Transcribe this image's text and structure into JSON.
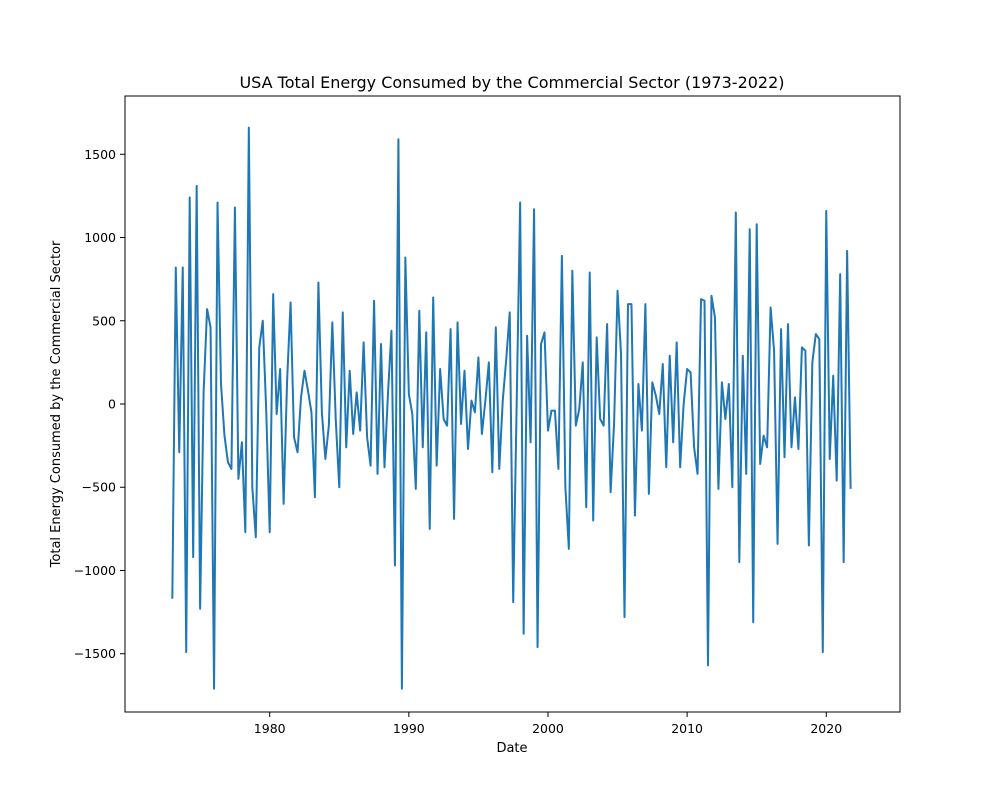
{
  "chart_data": {
    "type": "line",
    "title": "USA Total Energy Consumed by the Commercial Sector (1973-2022)",
    "xlabel": "Date",
    "ylabel": "Total Energy Consumed by the Commercial Sector",
    "xlim": [
      1969.6,
      2025.3
    ],
    "ylim": [
      -1850,
      1850
    ],
    "x_ticks": [
      1980,
      1990,
      2000,
      2010,
      2020
    ],
    "y_ticks": [
      -1500,
      -1000,
      -500,
      0,
      500,
      1000,
      1500
    ],
    "grid": false,
    "legend": "none",
    "line_color": "#1f77b4",
    "series": [
      {
        "x": [
          1973.0,
          1973.25,
          1973.5,
          1973.75,
          1974.0,
          1974.25,
          1974.5,
          1974.75,
          1975.0,
          1975.25,
          1975.5,
          1975.75,
          1976.0,
          1976.25,
          1976.5,
          1976.75,
          1977.0,
          1977.25,
          1977.5,
          1977.75,
          1978.0,
          1978.25,
          1978.5,
          1978.75,
          1979.0,
          1979.25,
          1979.5,
          1979.75,
          1980.0,
          1980.25,
          1980.5,
          1980.75,
          1981.0,
          1981.25,
          1981.5,
          1981.75,
          1982.0,
          1982.25,
          1982.5,
          1982.75,
          1983.0,
          1983.25,
          1983.5,
          1983.75,
          1984.0,
          1984.25,
          1984.5,
          1984.75,
          1985.0,
          1985.25,
          1985.5,
          1985.75,
          1986.0,
          1986.25,
          1986.5,
          1986.75,
          1987.0,
          1987.25,
          1987.5,
          1987.75,
          1988.0,
          1988.25,
          1988.5,
          1988.75,
          1989.0,
          1989.25,
          1989.5,
          1989.75,
          1990.0,
          1990.25,
          1990.5,
          1990.75,
          1991.0,
          1991.25,
          1991.5,
          1991.75,
          1992.0,
          1992.25,
          1992.5,
          1992.75,
          1993.0,
          1993.25,
          1993.5,
          1993.75,
          1994.0,
          1994.25,
          1994.5,
          1994.75,
          1995.0,
          1995.25,
          1995.5,
          1995.75,
          1996.0,
          1996.25,
          1996.5,
          1996.75,
          1997.0,
          1997.25,
          1997.5,
          1997.75,
          1998.0,
          1998.25,
          1998.5,
          1998.75,
          1999.0,
          1999.25,
          1999.5,
          1999.75,
          2000.0,
          2000.25,
          2000.5,
          2000.75,
          2001.0,
          2001.25,
          2001.5,
          2001.75,
          2002.0,
          2002.25,
          2002.5,
          2002.75,
          2003.0,
          2003.25,
          2003.5,
          2003.75,
          2004.0,
          2004.25,
          2004.5,
          2004.75,
          2005.0,
          2005.25,
          2005.5,
          2005.75,
          2006.0,
          2006.25,
          2006.5,
          2006.75,
          2007.0,
          2007.25,
          2007.5,
          2007.75,
          2008.0,
          2008.25,
          2008.5,
          2008.75,
          2009.0,
          2009.25,
          2009.5,
          2009.75,
          2010.0,
          2010.25,
          2010.5,
          2010.75,
          2011.0,
          2011.25,
          2011.5,
          2011.75,
          2012.0,
          2012.25,
          2012.5,
          2012.75,
          2013.0,
          2013.25,
          2013.5,
          2013.75,
          2014.0,
          2014.25,
          2014.5,
          2014.75,
          2015.0,
          2015.25,
          2015.5,
          2015.75,
          2016.0,
          2016.25,
          2016.5,
          2016.75,
          2017.0,
          2017.25,
          2017.5,
          2017.75,
          2018.0,
          2018.25,
          2018.5,
          2018.75,
          2019.0,
          2019.25,
          2019.5,
          2019.75,
          2020.0,
          2020.25,
          2020.5,
          2020.75,
          2021.0,
          2021.25,
          2021.5,
          2021.75
        ],
        "y": [
          -1170,
          820,
          -290,
          820,
          -1490,
          1240,
          -920,
          1310,
          -1230,
          70,
          570,
          460,
          -1710,
          1210,
          120,
          -190,
          -350,
          -390,
          1180,
          -450,
          -230,
          -770,
          1660,
          -500,
          -800,
          340,
          500,
          -40,
          -770,
          660,
          -60,
          210,
          -600,
          140,
          610,
          -200,
          -290,
          40,
          200,
          80,
          -50,
          -560,
          730,
          -50,
          -330,
          -130,
          490,
          -100,
          -500,
          550,
          -260,
          200,
          -180,
          70,
          -160,
          370,
          -200,
          -370,
          620,
          -420,
          360,
          -380,
          60,
          440,
          -970,
          1590,
          -1710,
          880,
          60,
          -60,
          -510,
          560,
          -260,
          430,
          -750,
          640,
          -370,
          210,
          -90,
          -130,
          450,
          -690,
          490,
          -120,
          200,
          -270,
          20,
          -50,
          280,
          -180,
          20,
          250,
          -410,
          460,
          -390,
          20,
          270,
          550,
          -1190,
          0,
          1210,
          -1380,
          410,
          -230,
          1170,
          -1460,
          360,
          430,
          -160,
          -40,
          -40,
          -390,
          890,
          -500,
          -870,
          800,
          -130,
          -30,
          250,
          -620,
          790,
          -700,
          400,
          -90,
          -130,
          480,
          -530,
          -120,
          680,
          300,
          -1280,
          600,
          600,
          -670,
          120,
          -160,
          600,
          -540,
          130,
          50,
          -60,
          240,
          -380,
          290,
          -230,
          370,
          -380,
          0,
          210,
          190,
          -260,
          -420,
          630,
          620,
          -1570,
          650,
          520,
          -510,
          130,
          -90,
          120,
          -500,
          1150,
          -950,
          290,
          -420,
          1050,
          -1310,
          1080,
          -360,
          -190,
          -260,
          580,
          320,
          -840,
          450,
          -320,
          480,
          -260,
          40,
          -270,
          340,
          320,
          -850,
          250,
          420,
          390,
          -1490,
          1160,
          -330,
          170,
          -460,
          780,
          -950,
          920,
          -510
        ]
      }
    ]
  }
}
